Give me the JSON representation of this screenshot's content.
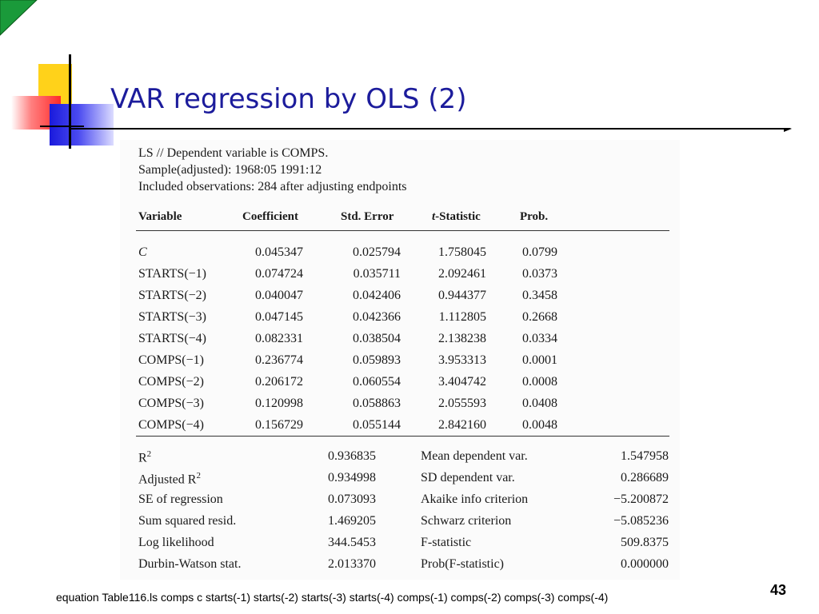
{
  "slide": {
    "title": "VAR regression by OLS (2)",
    "page_number": "43",
    "footer_command": "equation Table116.ls comps c starts(-1) starts(-2) starts(-3) starts(-4) comps(-1) comps(-2) comps(-3) comps(-4)",
    "colors": {
      "title": "#1c1c9c",
      "corner": "#1a9a3a",
      "yellow": "#ffd21a",
      "red": "#ff2a2a",
      "blue": "#1a1adc"
    }
  },
  "output": {
    "header": [
      "LS // Dependent variable is COMPS.",
      "Sample(adjusted): 1968:05 1991:12",
      "Included observations: 284 after adjusting endpoints"
    ],
    "columns": [
      "Variable",
      "Coefficient",
      "Std. Error",
      "-Statistic",
      "Prob."
    ],
    "t_prefix": "t",
    "rows": [
      {
        "variable": "C",
        "coef": "0.045347",
        "se": "0.025794",
        "tstat": "1.758045",
        "prob": "0.0799"
      },
      {
        "variable": "STARTS(−1)",
        "coef": "0.074724",
        "se": "0.035711",
        "tstat": "2.092461",
        "prob": "0.0373"
      },
      {
        "variable": "STARTS(−2)",
        "coef": "0.040047",
        "se": "0.042406",
        "tstat": "0.944377",
        "prob": "0.3458"
      },
      {
        "variable": "STARTS(−3)",
        "coef": "0.047145",
        "se": "0.042366",
        "tstat": "1.112805",
        "prob": "0.2668"
      },
      {
        "variable": "STARTS(−4)",
        "coef": "0.082331",
        "se": "0.038504",
        "tstat": "2.138238",
        "prob": "0.0334"
      },
      {
        "variable": "COMPS(−1)",
        "coef": "0.236774",
        "se": "0.059893",
        "tstat": "3.953313",
        "prob": "0.0001"
      },
      {
        "variable": "COMPS(−2)",
        "coef": "0.206172",
        "se": "0.060554",
        "tstat": "3.404742",
        "prob": "0.0008"
      },
      {
        "variable": "COMPS(−3)",
        "coef": "0.120998",
        "se": "0.058863",
        "tstat": "2.055593",
        "prob": "0.0408"
      },
      {
        "variable": "COMPS(−4)",
        "coef": "0.156729",
        "se": "0.055144",
        "tstat": "2.842160",
        "prob": "0.0048"
      }
    ],
    "stats": {
      "left": [
        {
          "label": "R",
          "sup": "2",
          "value": "0.936835"
        },
        {
          "label": "Adjusted R",
          "sup": "2",
          "value": "0.934998"
        },
        {
          "label": "SE of regression",
          "sup": "",
          "value": "0.073093"
        },
        {
          "label": "Sum squared resid.",
          "sup": "",
          "value": "1.469205"
        },
        {
          "label": "Log likelihood",
          "sup": "",
          "value": "344.5453"
        },
        {
          "label": "Durbin-Watson stat.",
          "sup": "",
          "value": "2.013370"
        }
      ],
      "right": [
        {
          "label": "Mean dependent var.",
          "value": "1.547958"
        },
        {
          "label": "SD dependent var.",
          "value": "0.286689"
        },
        {
          "label": "Akaike info criterion",
          "value": "−5.200872"
        },
        {
          "label": "Schwarz criterion",
          "value": "−5.085236"
        },
        {
          "label": "F-statistic",
          "value": "509.8375"
        },
        {
          "label": "Prob(F-statistic)",
          "value": "0.000000"
        }
      ]
    }
  }
}
